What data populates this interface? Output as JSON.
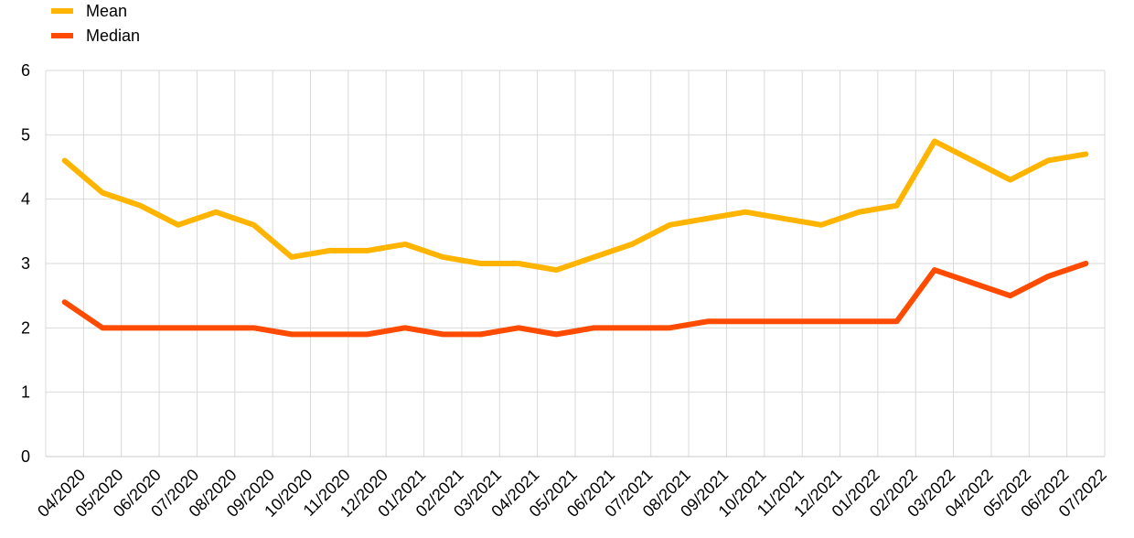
{
  "chart_data": {
    "type": "line",
    "title": "",
    "xlabel": "",
    "ylabel": "",
    "ylim": [
      0,
      6
    ],
    "yticks": [
      "0",
      "1",
      "2",
      "3",
      "4",
      "5",
      "6"
    ],
    "grid": true,
    "legend_position": "top-left",
    "x": [
      "04/2020",
      "05/2020",
      "06/2020",
      "07/2020",
      "08/2020",
      "09/2020",
      "10/2020",
      "11/2020",
      "12/2020",
      "01/2021",
      "02/2021",
      "03/2021",
      "04/2021",
      "05/2021",
      "06/2021",
      "07/2021",
      "08/2021",
      "09/2021",
      "10/2021",
      "11/2021",
      "12/2021",
      "01/2022",
      "02/2022",
      "03/2022",
      "04/2022",
      "05/2022",
      "06/2022",
      "07/2022"
    ],
    "series": [
      {
        "name": "Mean",
        "color": "#FFB400",
        "values": [
          4.6,
          4.1,
          3.9,
          3.6,
          3.8,
          3.6,
          3.1,
          3.2,
          3.2,
          3.3,
          3.1,
          3.0,
          3.0,
          2.9,
          3.1,
          3.3,
          3.6,
          3.7,
          3.8,
          3.7,
          3.6,
          3.8,
          3.9,
          4.9,
          4.6,
          4.3,
          4.6,
          4.7
        ]
      },
      {
        "name": "Median",
        "color": "#FF4B00",
        "values": [
          2.4,
          2.0,
          2.0,
          2.0,
          2.0,
          2.0,
          1.9,
          1.9,
          1.9,
          2.0,
          1.9,
          1.9,
          2.0,
          1.9,
          2.0,
          2.0,
          2.0,
          2.1,
          2.1,
          2.1,
          2.1,
          2.1,
          2.1,
          2.9,
          2.7,
          2.5,
          2.8,
          3.0
        ]
      }
    ]
  }
}
